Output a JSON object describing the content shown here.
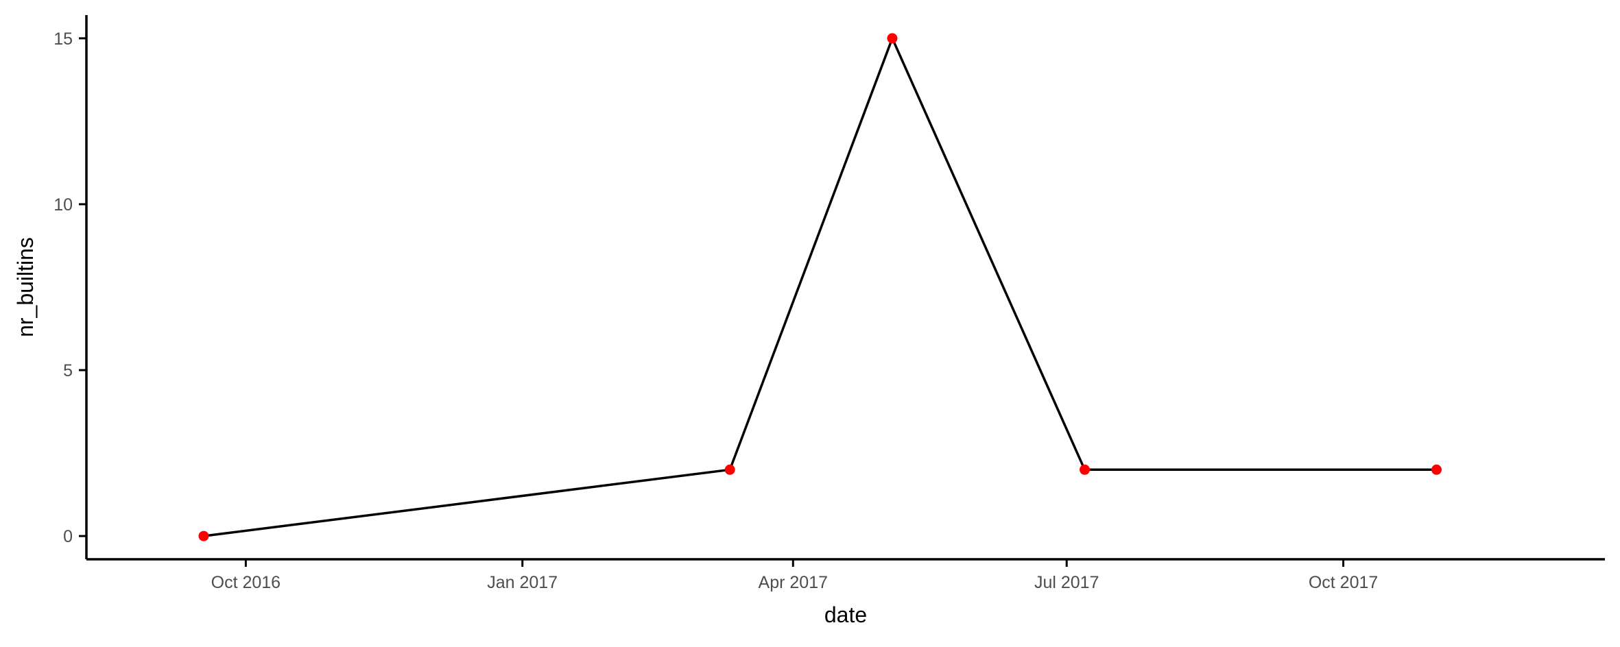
{
  "chart_data": {
    "type": "line",
    "xlabel": "date",
    "ylabel": "nr_builtins",
    "x_is_date": true,
    "xlim": [
      "2016-08-09",
      "2017-12-27"
    ],
    "ylim": [
      -0.7,
      15.7
    ],
    "x_ticks": [
      {
        "date": "2016-10-01",
        "label": "Oct 2016"
      },
      {
        "date": "2017-01-01",
        "label": "Jan 2017"
      },
      {
        "date": "2017-04-01",
        "label": "Apr 2017"
      },
      {
        "date": "2017-07-01",
        "label": "Jul 2017"
      },
      {
        "date": "2017-10-01",
        "label": "Oct 2017"
      }
    ],
    "y_ticks": [
      {
        "value": 0,
        "label": "0"
      },
      {
        "value": 5,
        "label": "5"
      },
      {
        "value": 10,
        "label": "10"
      },
      {
        "value": 15,
        "label": "15"
      }
    ],
    "series": [
      {
        "x": [
          "2016-09-17",
          "2017-03-11",
          "2017-05-04",
          "2017-07-07",
          "2017-11-01"
        ],
        "y": [
          0,
          2,
          15,
          2,
          2
        ]
      }
    ],
    "line_color": "#000000",
    "point_color": "#ff0000",
    "grid": false,
    "legend": "none"
  }
}
